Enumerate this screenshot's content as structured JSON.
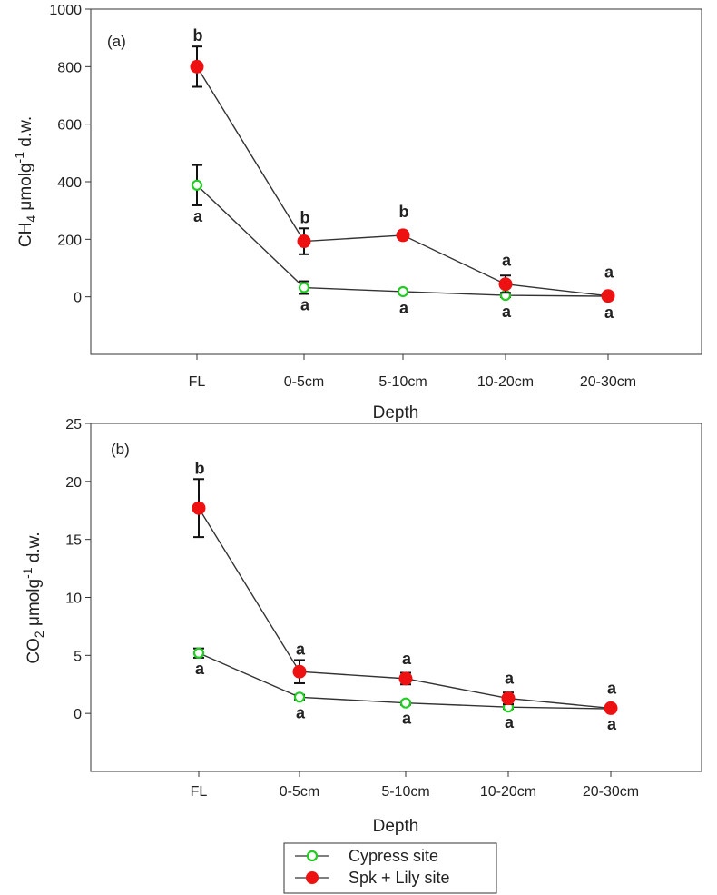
{
  "chart_data": [
    {
      "type": "line",
      "panel_label": "(a)",
      "categories": [
        "FL",
        "0-5cm",
        "5-10cm",
        "10-20cm",
        "20-30cm"
      ],
      "xlabel": "Depth",
      "ylabel": {
        "prefix": "CH",
        "sub": "4",
        "mid": " μmolg",
        "sup": "-1",
        "suffix": " d.w."
      },
      "ylim": [
        -200,
        1000
      ],
      "yticks": [
        0,
        200,
        400,
        600,
        800,
        1000
      ],
      "series": [
        {
          "name": "Cypress site",
          "values": [
            388,
            32,
            18,
            5,
            2
          ],
          "errors": [
            70,
            22,
            8,
            6,
            2
          ],
          "sig": [
            "a",
            "a",
            "a",
            "a",
            "a"
          ],
          "sig_pos": [
            "below",
            "below",
            "below",
            "below",
            "below"
          ]
        },
        {
          "name": "Spk + Lily site",
          "values": [
            800,
            193,
            214,
            44,
            3
          ],
          "errors": [
            70,
            45,
            15,
            30,
            3
          ],
          "sig": [
            "b",
            "b",
            "b",
            "a",
            "a"
          ],
          "sig_pos": [
            "above",
            "above",
            "above",
            "above",
            "above"
          ]
        }
      ]
    },
    {
      "type": "line",
      "panel_label": "(b)",
      "categories": [
        "FL",
        "0-5cm",
        "5-10cm",
        "10-20cm",
        "20-30cm"
      ],
      "xlabel": "Depth",
      "ylabel": {
        "prefix": "CO",
        "sub": "2",
        "mid": "  μmolg",
        "sup": "-1",
        "suffix": " d.w."
      },
      "ylim": [
        -5,
        25
      ],
      "yticks": [
        0,
        5,
        10,
        15,
        20,
        25
      ],
      "series": [
        {
          "name": "Cypress site",
          "values": [
            5.2,
            1.4,
            0.9,
            0.55,
            0.4
          ],
          "errors": [
            0.4,
            0.2,
            0.15,
            0.15,
            0.1
          ],
          "sig": [
            "a",
            "a",
            "a",
            "a",
            "a"
          ],
          "sig_pos": [
            "below",
            "below",
            "below",
            "below",
            "below"
          ]
        },
        {
          "name": "Spk + Lily site",
          "values": [
            17.7,
            3.6,
            3.0,
            1.3,
            0.45
          ],
          "errors": [
            2.5,
            1.0,
            0.5,
            0.5,
            0.15
          ],
          "sig": [
            "b",
            "a",
            "a",
            "a",
            "a"
          ],
          "sig_pos": [
            "above",
            "above",
            "above",
            "above",
            "above"
          ]
        }
      ]
    }
  ],
  "legend": {
    "items": [
      {
        "label": "Cypress site",
        "marker": "open-circle",
        "color": "#22cc22"
      },
      {
        "label": "Spk + Lily site",
        "marker": "filled-circle",
        "color": "#ee1111"
      }
    ]
  },
  "colors": {
    "cypress": "#22cc22",
    "spk": "#ee1111",
    "line": "#333333",
    "axis": "#333333"
  }
}
